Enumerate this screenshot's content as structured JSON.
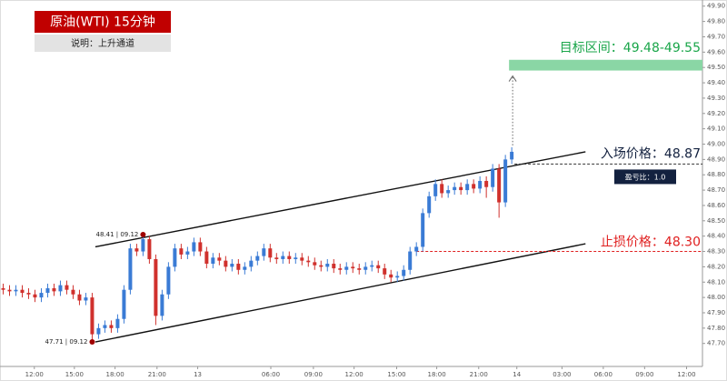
{
  "chart_data": {
    "type": "candlestick",
    "title": "原油(WTI)  15分钟",
    "subtitle": "说明：上升通道",
    "up_color": "#3a7bd5",
    "down_color": "#d0312d",
    "open": [
      48.06,
      48.05,
      48.04,
      48.05,
      48.03,
      48.02,
      48.0,
      48.03,
      48.06,
      48.04,
      48.08,
      48.05,
      48.02,
      47.98,
      48.0,
      47.76,
      47.8,
      47.82,
      47.8,
      47.86,
      48.05,
      48.32,
      48.3,
      48.38,
      48.25,
      47.88,
      48.02,
      48.2,
      48.32,
      48.28,
      48.3,
      48.36,
      48.3,
      48.22,
      48.26,
      48.24,
      48.2,
      48.22,
      48.18,
      48.2,
      48.24,
      48.27,
      48.32,
      48.26,
      48.25,
      48.27,
      48.25,
      48.26,
      48.24,
      48.23,
      48.21,
      48.2,
      48.22,
      48.19,
      48.18,
      48.2,
      48.19,
      48.18,
      48.2,
      48.21,
      48.19,
      48.15,
      48.13,
      48.14,
      48.18,
      48.3,
      48.33,
      48.55,
      48.66,
      48.74,
      48.68,
      48.7,
      48.72,
      48.7,
      48.74,
      48.71,
      48.76,
      48.72,
      48.84,
      48.62,
      48.9
    ],
    "high": [
      48.09,
      48.08,
      48.08,
      48.08,
      48.06,
      48.05,
      48.06,
      48.09,
      48.09,
      48.11,
      48.11,
      48.08,
      48.05,
      48.03,
      48.03,
      47.83,
      47.85,
      47.85,
      47.89,
      48.08,
      48.35,
      48.35,
      48.41,
      48.4,
      48.28,
      48.05,
      48.23,
      48.35,
      48.35,
      48.33,
      48.39,
      48.39,
      48.33,
      48.29,
      48.29,
      48.27,
      48.25,
      48.25,
      48.23,
      48.27,
      48.3,
      48.35,
      48.35,
      48.29,
      48.3,
      48.3,
      48.29,
      48.29,
      48.27,
      48.26,
      48.24,
      48.25,
      48.25,
      48.22,
      48.23,
      48.23,
      48.22,
      48.23,
      48.24,
      48.24,
      48.22,
      48.18,
      48.17,
      48.21,
      48.33,
      48.36,
      48.58,
      48.69,
      48.77,
      48.77,
      48.73,
      48.75,
      48.75,
      48.77,
      48.77,
      48.79,
      48.79,
      48.87,
      48.87,
      48.93,
      48.98
    ],
    "low": [
      48.02,
      48.01,
      48.01,
      48.0,
      47.99,
      47.97,
      47.97,
      48.0,
      48.01,
      48.01,
      48.02,
      47.99,
      47.95,
      47.95,
      47.71,
      47.73,
      47.77,
      47.77,
      47.77,
      47.83,
      48.02,
      48.27,
      48.27,
      48.22,
      47.82,
      47.85,
      47.99,
      48.17,
      48.25,
      48.25,
      48.27,
      48.27,
      48.19,
      48.19,
      48.21,
      48.17,
      48.17,
      48.15,
      48.15,
      48.17,
      48.21,
      48.24,
      48.23,
      48.22,
      48.22,
      48.22,
      48.22,
      48.21,
      48.2,
      48.18,
      48.17,
      48.17,
      48.16,
      48.15,
      48.15,
      48.16,
      48.15,
      48.15,
      48.17,
      48.16,
      48.12,
      48.1,
      48.1,
      48.11,
      48.15,
      48.27,
      48.3,
      48.52,
      48.63,
      48.65,
      48.65,
      48.67,
      48.67,
      48.67,
      48.68,
      48.68,
      48.65,
      48.69,
      48.52,
      48.59,
      48.87
    ],
    "close": [
      48.05,
      48.04,
      48.05,
      48.03,
      48.02,
      48.0,
      48.03,
      48.06,
      48.04,
      48.08,
      48.05,
      48.02,
      47.98,
      48.0,
      47.76,
      47.8,
      47.82,
      47.8,
      47.86,
      48.05,
      48.32,
      48.3,
      48.38,
      48.25,
      47.88,
      48.02,
      48.2,
      48.32,
      48.28,
      48.3,
      48.36,
      48.3,
      48.22,
      48.26,
      48.24,
      48.2,
      48.22,
      48.18,
      48.2,
      48.24,
      48.27,
      48.32,
      48.26,
      48.25,
      48.27,
      48.25,
      48.26,
      48.24,
      48.23,
      48.21,
      48.2,
      48.22,
      48.19,
      48.18,
      48.2,
      48.19,
      48.18,
      48.2,
      48.21,
      48.19,
      48.15,
      48.13,
      48.14,
      48.18,
      48.3,
      48.33,
      48.55,
      48.66,
      48.74,
      48.68,
      48.7,
      48.72,
      48.7,
      48.74,
      48.71,
      48.76,
      48.72,
      48.84,
      48.62,
      48.9,
      48.95
    ],
    "xlim": [
      -0.5,
      110
    ],
    "xticks": [
      {
        "value": 4.9,
        "label": "12:00"
      },
      {
        "value": 11.2,
        "label": "15:00"
      },
      {
        "value": 17.6,
        "label": "18:00"
      },
      {
        "value": 24.2,
        "label": "21:00"
      },
      {
        "value": 30.6,
        "label": "13"
      },
      {
        "value": 42.1,
        "label": "06:00"
      },
      {
        "value": 48.8,
        "label": "09:00"
      },
      {
        "value": 55.2,
        "label": "12:00"
      },
      {
        "value": 61.9,
        "label": "15:00"
      },
      {
        "value": 68.2,
        "label": "18:00"
      },
      {
        "value": 74.8,
        "label": "21:00"
      },
      {
        "value": 80.8,
        "label": "14"
      },
      {
        "value": 87.9,
        "label": "03:00"
      },
      {
        "value": 94.4,
        "label": "06:00"
      },
      {
        "value": 100.9,
        "label": "09:00"
      },
      {
        "value": 107.5,
        "label": "12:00"
      }
    ],
    "ylim": [
      47.55,
      49.94
    ],
    "yticks": [
      {
        "value": 47.7,
        "label": "47.70"
      },
      {
        "value": 47.8,
        "label": "47.80"
      },
      {
        "value": 47.9,
        "label": "47.90"
      },
      {
        "value": 48.0,
        "label": "48.00"
      },
      {
        "value": 48.1,
        "label": "48.10"
      },
      {
        "value": 48.2,
        "label": "48.20"
      },
      {
        "value": 48.3,
        "label": "48.30"
      },
      {
        "value": 48.4,
        "label": "48.40"
      },
      {
        "value": 48.5,
        "label": "48.50"
      },
      {
        "value": 48.6,
        "label": "48.60"
      },
      {
        "value": 48.7,
        "label": "48.70"
      },
      {
        "value": 48.8,
        "label": "48.80"
      },
      {
        "value": 48.9,
        "label": "48.90"
      },
      {
        "value": 49.0,
        "label": "49.00"
      },
      {
        "value": 49.1,
        "label": "49.10"
      },
      {
        "value": 49.2,
        "label": "49.20"
      },
      {
        "value": 49.3,
        "label": "49.30"
      },
      {
        "value": 49.4,
        "label": "49.40"
      },
      {
        "value": 49.5,
        "label": "49.50"
      },
      {
        "value": 49.6,
        "label": "49.60"
      },
      {
        "value": 49.7,
        "label": "49.70"
      },
      {
        "value": 49.8,
        "label": "49.80"
      },
      {
        "value": 49.9,
        "label": "49.90"
      }
    ],
    "channel": [
      {
        "x": [
          14.5,
          91.6
        ],
        "y": [
          48.33,
          48.95
        ]
      },
      {
        "x": [
          14.5,
          91.6
        ],
        "y": [
          47.71,
          48.35
        ]
      }
    ],
    "annotations": [
      {
        "text": "48.41 | 09.12",
        "x": 22,
        "y": 48.41
      },
      {
        "text": "47.71 | 09.12",
        "x": 14,
        "y": 47.71
      }
    ],
    "target": {
      "label": "目标区间：49.48-49.55",
      "low": 49.48,
      "high": 49.55,
      "color": "#8ad6a5"
    },
    "entry": {
      "label": "入场价格：48.87",
      "value": 48.87
    },
    "stop": {
      "label": "止损价格：48.30",
      "value": 48.3
    },
    "ratio": "盈亏比：1.0"
  }
}
